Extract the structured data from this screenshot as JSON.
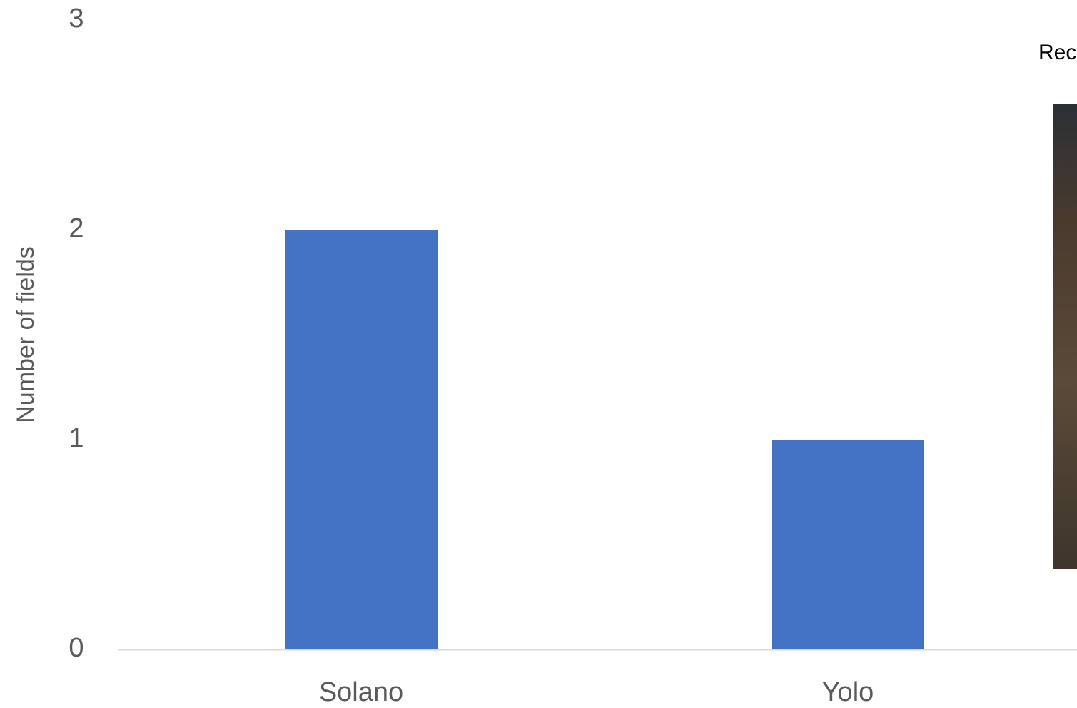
{
  "chart_data": {
    "type": "bar",
    "ylabel": "Number of fields",
    "annotation": "Rec",
    "categories": [
      "Solano",
      "Yolo"
    ],
    "values": [
      2,
      1
    ],
    "color": "#4472c4",
    "ylim": [
      0,
      3
    ],
    "yticks": [
      0,
      1,
      2,
      3
    ],
    "grid": false
  }
}
